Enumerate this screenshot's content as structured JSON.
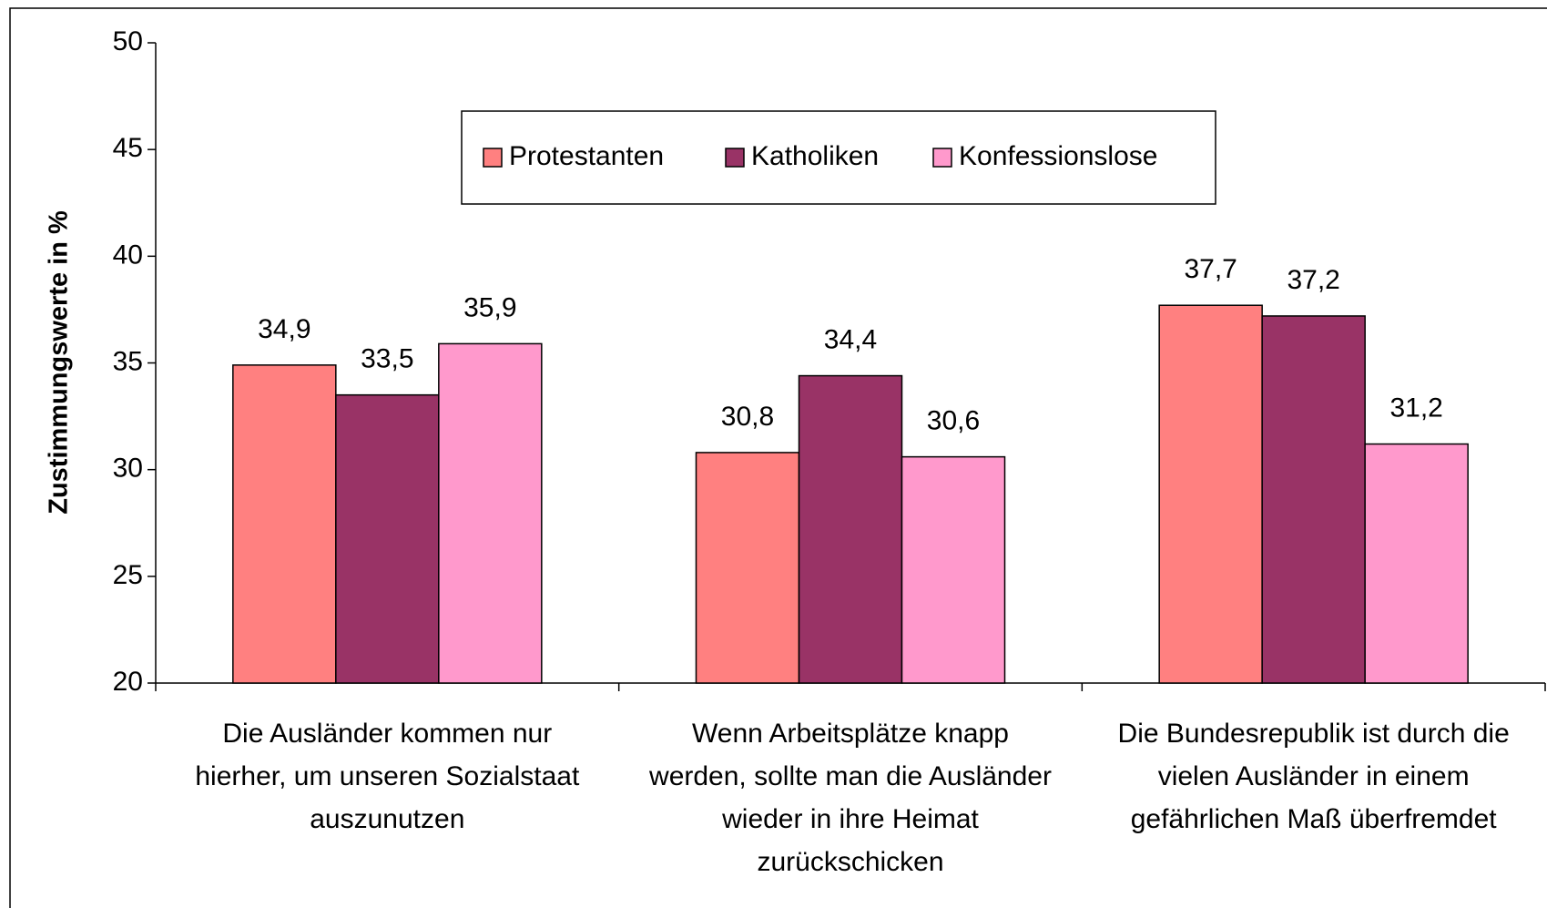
{
  "chart_data": {
    "type": "bar",
    "y_label": "Zustimmungswerte in %",
    "categories": [
      "Die Ausländer kommen nur hierher, um unseren Sozialstaat auszunutzen",
      "Wenn Arbeitsplätze knapp werden, sollte man die Ausländer wieder in ihre Heimat zurückschicken",
      "Die Bundesrepublik ist durch die vielen Ausländer in einem gefährlichen Maß überfremdet"
    ],
    "series": [
      {
        "name": "Protestanten",
        "color": "#ff8080",
        "values": [
          34.9,
          30.8,
          37.7
        ],
        "value_labels": [
          "34,9",
          "30,8",
          "37,7"
        ]
      },
      {
        "name": "Katholiken",
        "color": "#993366",
        "values": [
          33.5,
          34.4,
          37.2
        ],
        "value_labels": [
          "33,5",
          "34,4",
          "37,2"
        ]
      },
      {
        "name": "Konfessionslose",
        "color": "#ff99cc",
        "values": [
          35.9,
          30.6,
          31.2
        ],
        "value_labels": [
          "35,9",
          "30,6",
          "31,2"
        ]
      }
    ],
    "ylim": [
      20,
      50
    ],
    "yticks": [
      20,
      25,
      30,
      35,
      40,
      45,
      50
    ],
    "legend": "top"
  }
}
